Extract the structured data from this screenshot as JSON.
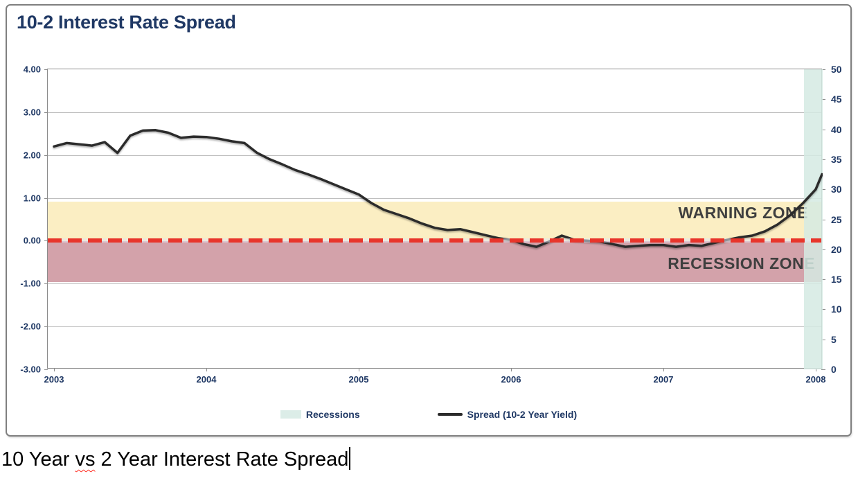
{
  "chart": {
    "title": "10-2 Interest Rate Spread",
    "zones": {
      "warning_label": "WARNING ZONE",
      "recession_label": "RECESSION ZONE"
    },
    "legend": [
      {
        "label": "Recessions",
        "swatch": "recession-band-swatch"
      },
      {
        "label": "Spread (10-2 Year Yield)",
        "swatch": "line-swatch"
      }
    ],
    "axes": {
      "left_ticks": [
        "4.00",
        "3.00",
        "2.00",
        "1.00",
        "0.00",
        "-1.00",
        "-2.00",
        "-3.00"
      ],
      "right_ticks": [
        "50",
        "45",
        "40",
        "35",
        "30",
        "25",
        "20",
        "15",
        "10",
        "5",
        "0"
      ],
      "x_ticks": [
        "2003",
        "2004",
        "2005",
        "2006",
        "2007",
        "2008"
      ]
    }
  },
  "caption": {
    "full_text": "10 Year vs 2 Year Interest Rate Spread",
    "part_before": "10 Year ",
    "misspelled_word": "vs",
    "part_after": " 2 Year Interest Rate Spread"
  },
  "colors": {
    "title_navy": "#1F3864",
    "axis_navy": "#1F3864",
    "warning_band": "#FBEEC3",
    "recession_band": "#D3A2AA",
    "recession_vband_teal": "#DCEDE8",
    "zero_dash_red": "#E8352B",
    "spread_line": "#2B2B2B",
    "zone_label_gray": "#3F3F3F",
    "gridline_gray": "#BFBFBF"
  },
  "chart_data": {
    "type": "line",
    "title": "10-2 Interest Rate Spread",
    "xlabel": "",
    "ylabel_left": "",
    "x_unit": "month",
    "x_start": "2003-01",
    "x_end": "2008-02",
    "x_tick_labels": [
      "2003",
      "2004",
      "2005",
      "2006",
      "2007",
      "2008"
    ],
    "left_axis_range": [
      -3.0,
      4.0
    ],
    "right_axis_range": [
      0,
      50
    ],
    "grid": "horizontal",
    "legend_position": "bottom",
    "series": [
      {
        "name": "Spread (10-2 Year Yield)",
        "color": "#2B2B2B",
        "values": [
          2.2,
          2.28,
          2.25,
          2.22,
          2.3,
          2.05,
          2.45,
          2.57,
          2.58,
          2.52,
          2.4,
          2.43,
          2.42,
          2.38,
          2.32,
          2.28,
          2.05,
          1.9,
          1.78,
          1.65,
          1.55,
          1.44,
          1.32,
          1.2,
          1.08,
          0.88,
          0.72,
          0.62,
          0.52,
          0.4,
          0.3,
          0.25,
          0.27,
          0.2,
          0.13,
          0.06,
          0.02,
          -0.08,
          -0.14,
          -0.02,
          0.12,
          0.02,
          0.0,
          -0.02,
          -0.08,
          -0.14,
          -0.12,
          -0.1,
          -0.1,
          -0.14,
          -0.1,
          -0.12,
          -0.05,
          0.02,
          0.08,
          0.12,
          0.22,
          0.38,
          0.6,
          0.88,
          1.2,
          1.55
        ]
      }
    ],
    "zones": [
      {
        "name": "WARNING ZONE",
        "from": 0.0,
        "to": 0.92,
        "color": "#FBEEC3"
      },
      {
        "name": "RECESSION ZONE",
        "from": -0.95,
        "to": 0.0,
        "color": "#D3A2AA"
      }
    ],
    "recession_vband": {
      "from": "2007-12",
      "to": "2008-02",
      "color": "#DCEDE8"
    },
    "zero_line": {
      "value": 0.0,
      "style": "dashed",
      "color": "#E8352B"
    }
  }
}
